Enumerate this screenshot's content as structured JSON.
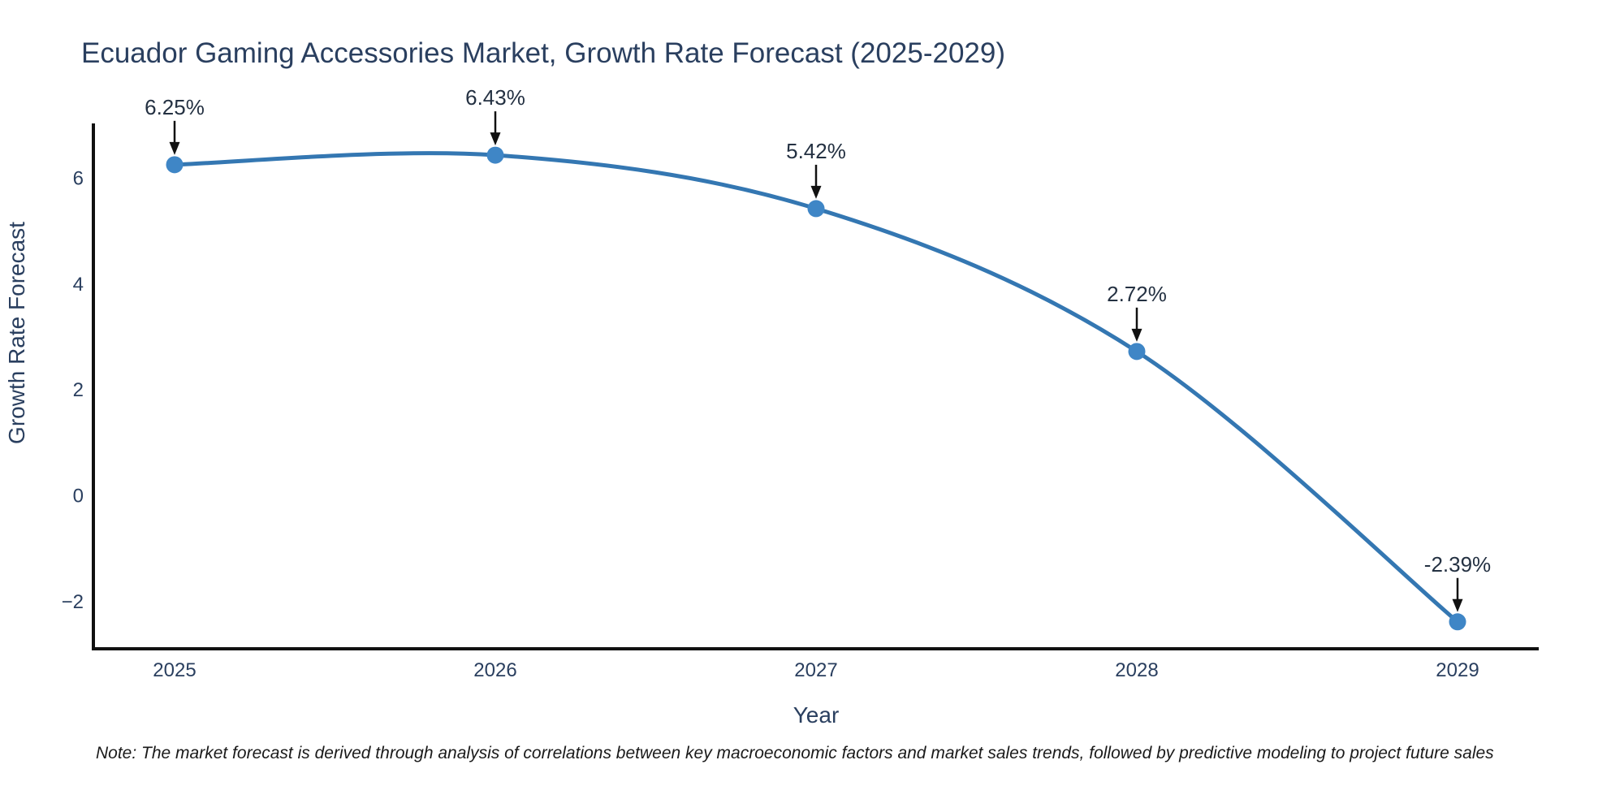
{
  "note": "Note: The market forecast is derived through analysis of correlations between key macroeconomic factors and market sales trends, followed by predictive modeling to project future sales",
  "chart_data": {
    "type": "line",
    "title": "Ecuador Gaming Accessories Market, Growth Rate Forecast (2025-2029)",
    "xlabel": "Year",
    "ylabel": "Growth Rate Forecast",
    "categories": [
      2025,
      2026,
      2027,
      2028,
      2029
    ],
    "values": [
      6.25,
      6.43,
      5.42,
      2.72,
      -2.39
    ],
    "point_labels": [
      "6.25%",
      "6.43%",
      "5.42%",
      "2.72%",
      "-2.39%"
    ],
    "yticks": [
      6,
      4,
      2,
      0,
      -2
    ],
    "ylim": [
      -2.9,
      7.03
    ],
    "grid": false,
    "legend_position": "none",
    "line_shape": "spline",
    "colors": {
      "line": "#3477b2",
      "marker": "#3f86c6",
      "axis": "#111111",
      "tick_text": "#2a3f5f",
      "title_text": "#2a3f5f",
      "annotation_text": "#243142",
      "arrow": "#111111",
      "note_text": "#1a1a1a",
      "background": "#ffffff"
    }
  }
}
